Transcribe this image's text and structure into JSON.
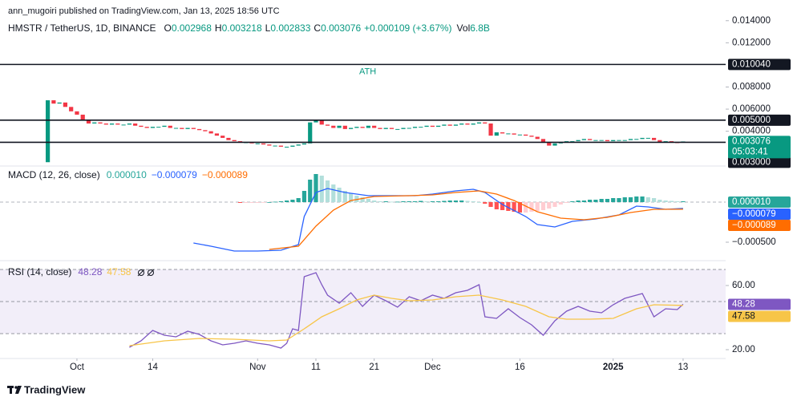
{
  "header": {
    "published": "ann_mugoiri published on TradingView.com, Jan 13, 2025 18:56 UTC",
    "symbol": "HMSTR / TetherUS, 1D, BINANCE",
    "ohlc_letters": [
      "O",
      "H",
      "L",
      "C"
    ],
    "high": "0.003218",
    "low": "0.002833",
    "change": "+0.000109 (+3.67%)",
    "volume_letter": "Vol",
    "volume": "6.8B"
  },
  "chart_data": [
    {
      "type": "candlestick",
      "up_color": "#089981",
      "down_color": "#f23645",
      "opens": [
        0.0012,
        0.0068,
        0.0065,
        0.0066,
        0.0062,
        0.0058,
        0.0055,
        0.005,
        0.0047,
        0.0048,
        0.0047,
        0.0046,
        0.0047,
        0.0046,
        0.0046,
        0.0047,
        0.0045,
        0.0044,
        0.0043,
        0.0044,
        0.0044,
        0.0045,
        0.0043,
        0.0043,
        0.0042,
        0.0043,
        0.0042,
        0.0041,
        0.004,
        0.0038,
        0.0036,
        0.0034,
        0.0032,
        0.0031,
        0.003,
        0.003,
        0.0029,
        0.0029,
        0.0028,
        0.0027,
        0.0027,
        0.0026,
        0.0026,
        0.0027,
        0.0028,
        0.0029,
        0.0048,
        0.005,
        0.0046,
        0.0045,
        0.0043,
        0.0045,
        0.0042,
        0.0043,
        0.0044,
        0.0043,
        0.0045,
        0.0043,
        0.0042,
        0.0043,
        0.0042,
        0.0042,
        0.0043,
        0.0043,
        0.0044,
        0.0044,
        0.0045,
        0.0044,
        0.0045,
        0.0046,
        0.0045,
        0.0046,
        0.0047,
        0.0046,
        0.0047,
        0.0048,
        0.0047,
        0.0036,
        0.0039,
        0.0038,
        0.0038,
        0.0037,
        0.0037,
        0.0036,
        0.0035,
        0.0033,
        0.003,
        0.0027,
        0.0029,
        0.003,
        0.0031,
        0.0031,
        0.0032,
        0.0033,
        0.0032,
        0.0032,
        0.0032,
        0.0031,
        0.0032,
        0.0032,
        0.0032,
        0.0033,
        0.0033,
        0.0034,
        0.0034,
        0.0032,
        0.003,
        0.0031,
        0.003,
        0.002968
      ],
      "closes": [
        0.0068,
        0.0065,
        0.0066,
        0.0062,
        0.0058,
        0.0055,
        0.005,
        0.0047,
        0.0048,
        0.0047,
        0.0046,
        0.0047,
        0.0046,
        0.0046,
        0.0047,
        0.0045,
        0.0044,
        0.0043,
        0.0044,
        0.0044,
        0.0045,
        0.0043,
        0.0043,
        0.0042,
        0.0043,
        0.0042,
        0.0041,
        0.004,
        0.0038,
        0.0036,
        0.0034,
        0.0032,
        0.0031,
        0.003,
        0.003,
        0.0029,
        0.0029,
        0.0028,
        0.0027,
        0.0027,
        0.0026,
        0.0026,
        0.0027,
        0.0028,
        0.0029,
        0.0048,
        0.005,
        0.0046,
        0.0045,
        0.0043,
        0.0045,
        0.0042,
        0.0043,
        0.0044,
        0.0043,
        0.0045,
        0.0043,
        0.0042,
        0.0043,
        0.0042,
        0.0042,
        0.0043,
        0.0043,
        0.0044,
        0.0044,
        0.0045,
        0.0044,
        0.0045,
        0.0046,
        0.0045,
        0.0046,
        0.0047,
        0.0046,
        0.0047,
        0.0048,
        0.0047,
        0.0036,
        0.0039,
        0.0038,
        0.0038,
        0.0037,
        0.0037,
        0.0036,
        0.0035,
        0.0033,
        0.003,
        0.0027,
        0.0029,
        0.003,
        0.0031,
        0.0031,
        0.0032,
        0.0033,
        0.0032,
        0.0032,
        0.0032,
        0.0031,
        0.0032,
        0.0032,
        0.0032,
        0.0033,
        0.0033,
        0.0034,
        0.0034,
        0.0032,
        0.003,
        0.0031,
        0.003,
        0.00297,
        0.003076
      ],
      "ylim": [
        0.001,
        0.015
      ],
      "yticks": [
        {
          "value": 0.014,
          "label": "0.014000"
        },
        {
          "value": 0.012,
          "label": "0.012000"
        },
        {
          "value": 0.008,
          "label": "0.008000"
        },
        {
          "value": 0.006,
          "label": "0.006000"
        },
        {
          "value": 0.004,
          "label": "0.004000"
        }
      ],
      "hlines": [
        {
          "value": 0.01004,
          "label": "0.010040"
        },
        {
          "value": 0.005,
          "label": "0.005000"
        },
        {
          "value": 0.003,
          "label": "0.003000"
        }
      ],
      "annotation": "ATH",
      "countdown": "05:03:41"
    },
    {
      "type": "macd",
      "title": "MACD (12, 26, close)",
      "ylim": [
        -0.0007,
        0.00042
      ],
      "yticks": [
        {
          "value": -0.0005,
          "label": "−0.000500"
        }
      ],
      "histogram": {
        "last_label": "0.000010",
        "colors": [
          "#26a69a",
          "#b2dfdb",
          "#ff5252",
          "#ffcdd2"
        ],
        "values": [
          null,
          null,
          null,
          null,
          null,
          null,
          null,
          null,
          null,
          null,
          null,
          null,
          null,
          null,
          null,
          null,
          null,
          null,
          null,
          null,
          null,
          null,
          null,
          null,
          null,
          null,
          null,
          null,
          null,
          null,
          null,
          null,
          null,
          -1e-05,
          -1e-05,
          -1e-05,
          -1e-05,
          -5e-06,
          0,
          5e-06,
          1e-05,
          2e-05,
          3e-05,
          5e-05,
          0.00014,
          0.00028,
          0.00035,
          0.00033,
          0.00027,
          0.00022,
          0.00018,
          0.00014,
          0.00011,
          8e-05,
          6e-05,
          4e-05,
          2e-05,
          1e-05,
          1e-05,
          5e-06,
          5e-06,
          1e-05,
          1e-05,
          1e-05,
          1.5e-05,
          1e-05,
          1e-05,
          1e-05,
          1.5e-05,
          2e-05,
          2e-05,
          2e-05,
          1.5e-05,
          1e-05,
          0,
          -2e-05,
          -6e-05,
          -9e-05,
          -0.0001,
          -0.00011,
          -0.00012,
          -0.00013,
          -0.00013,
          -0.00012,
          -0.00011,
          -0.0001,
          -8e-05,
          -6e-05,
          -3e-05,
          -1e-05,
          1e-05,
          2e-05,
          2e-05,
          3e-05,
          3e-05,
          4e-05,
          4e-05,
          5e-05,
          5e-05,
          6e-05,
          6e-05,
          7e-05,
          7e-05,
          6e-05,
          5e-05,
          3e-05,
          2e-05,
          1.5e-05,
          1e-05,
          1e-05
        ]
      },
      "series": [
        {
          "color": "#2962ff",
          "last_label": "−0.000079",
          "x": [
            25,
            28,
            32,
            36,
            40,
            43,
            44,
            46,
            48,
            51,
            55,
            60,
            63,
            66,
            70,
            73,
            75,
            78,
            82,
            84,
            87,
            90,
            94,
            98,
            101,
            103,
            106,
            109
          ],
          "values": [
            -0.00051,
            -0.00055,
            -0.00061,
            -0.00061,
            -0.0006,
            -0.00053,
            -0.00018,
            0.00012,
            0.00017,
            0.00012,
            8e-05,
            8e-05,
            8e-05,
            0.0001,
            0.00014,
            0.00016,
            0.00012,
            -3e-05,
            -0.00018,
            -0.00028,
            -0.00031,
            -0.00024,
            -0.00021,
            -0.00016,
            -5e-05,
            -6e-05,
            -9e-05,
            -7.9e-05
          ]
        },
        {
          "color": "#ff6d00",
          "last_label": "−0.000089",
          "x": [
            38,
            43,
            46,
            49,
            52,
            56,
            62,
            66,
            70,
            74,
            77,
            80,
            84,
            88,
            92,
            96,
            100,
            104,
            109
          ],
          "values": [
            -0.00059,
            -0.00055,
            -0.0003,
            -0.0001,
            2e-05,
            7e-05,
            8e-05,
            9e-05,
            0.00012,
            0.00014,
            0.0001,
            2e-05,
            -0.00012,
            -0.0002,
            -0.00022,
            -0.00019,
            -0.00013,
            -9e-05,
            -8.9e-05
          ]
        }
      ]
    },
    {
      "type": "rsi",
      "title": "RSI (14, close)",
      "ylim": [
        15,
        73
      ],
      "yticks": [
        {
          "value": 60,
          "label": "60.00"
        },
        {
          "value": 20,
          "label": "20.00"
        }
      ],
      "levels": [
        70,
        50,
        30
      ],
      "xlim": [
        -8.2,
        116.3
      ],
      "xticks": [
        {
          "value": 5,
          "label": "Oct"
        },
        {
          "value": 18,
          "label": "14"
        },
        {
          "value": 36,
          "label": "Nov"
        },
        {
          "value": 46,
          "label": "11"
        },
        {
          "value": 56,
          "label": "21"
        },
        {
          "value": 66,
          "label": "Dec"
        },
        {
          "value": 81,
          "label": "16"
        },
        {
          "value": 97,
          "label": "2025"
        },
        {
          "value": 109,
          "label": "13"
        }
      ],
      "series": [
        {
          "color": "#7e57c2",
          "x": [
            14,
            16,
            18,
            20,
            22,
            24,
            26,
            28,
            30,
            32,
            34,
            36,
            38,
            40,
            41,
            42,
            43,
            44,
            46,
            47,
            48,
            50,
            52,
            54,
            56,
            58,
            60,
            62,
            64,
            66,
            68,
            70,
            72,
            74,
            75,
            77,
            79,
            81,
            83,
            85,
            87,
            89,
            91,
            93,
            95,
            97,
            99,
            101,
            102,
            104,
            106,
            108,
            109
          ],
          "values": [
            21.5,
            25.5,
            32,
            29,
            28,
            31.5,
            29.5,
            25.5,
            23,
            24,
            25.5,
            24,
            23,
            21,
            24,
            33,
            32,
            65.5,
            68,
            60.5,
            54,
            49,
            55.5,
            47,
            54,
            50.5,
            46.5,
            53,
            50.5,
            54,
            52,
            55.5,
            57,
            60.5,
            40.5,
            39.5,
            45.5,
            40,
            35.5,
            29,
            38,
            44,
            47,
            44,
            43,
            48,
            52,
            54,
            55,
            40.5,
            45.5,
            45,
            48.28
          ]
        },
        {
          "color": "#f7c548",
          "x": [
            14,
            20,
            26,
            32,
            38,
            41,
            44,
            47,
            50,
            53,
            56,
            59,
            62,
            66,
            70,
            74,
            78,
            82,
            86,
            89,
            93,
            97,
            101,
            104,
            109
          ],
          "values": [
            22.5,
            25.5,
            27,
            26.5,
            25.5,
            26,
            33,
            40.5,
            45.5,
            51,
            54,
            52,
            50.5,
            51,
            53,
            54,
            51,
            47,
            40.5,
            39,
            39,
            39.5,
            45.5,
            48,
            47.58
          ]
        }
      ]
    }
  ],
  "footer": {
    "brand": "TradingView"
  }
}
